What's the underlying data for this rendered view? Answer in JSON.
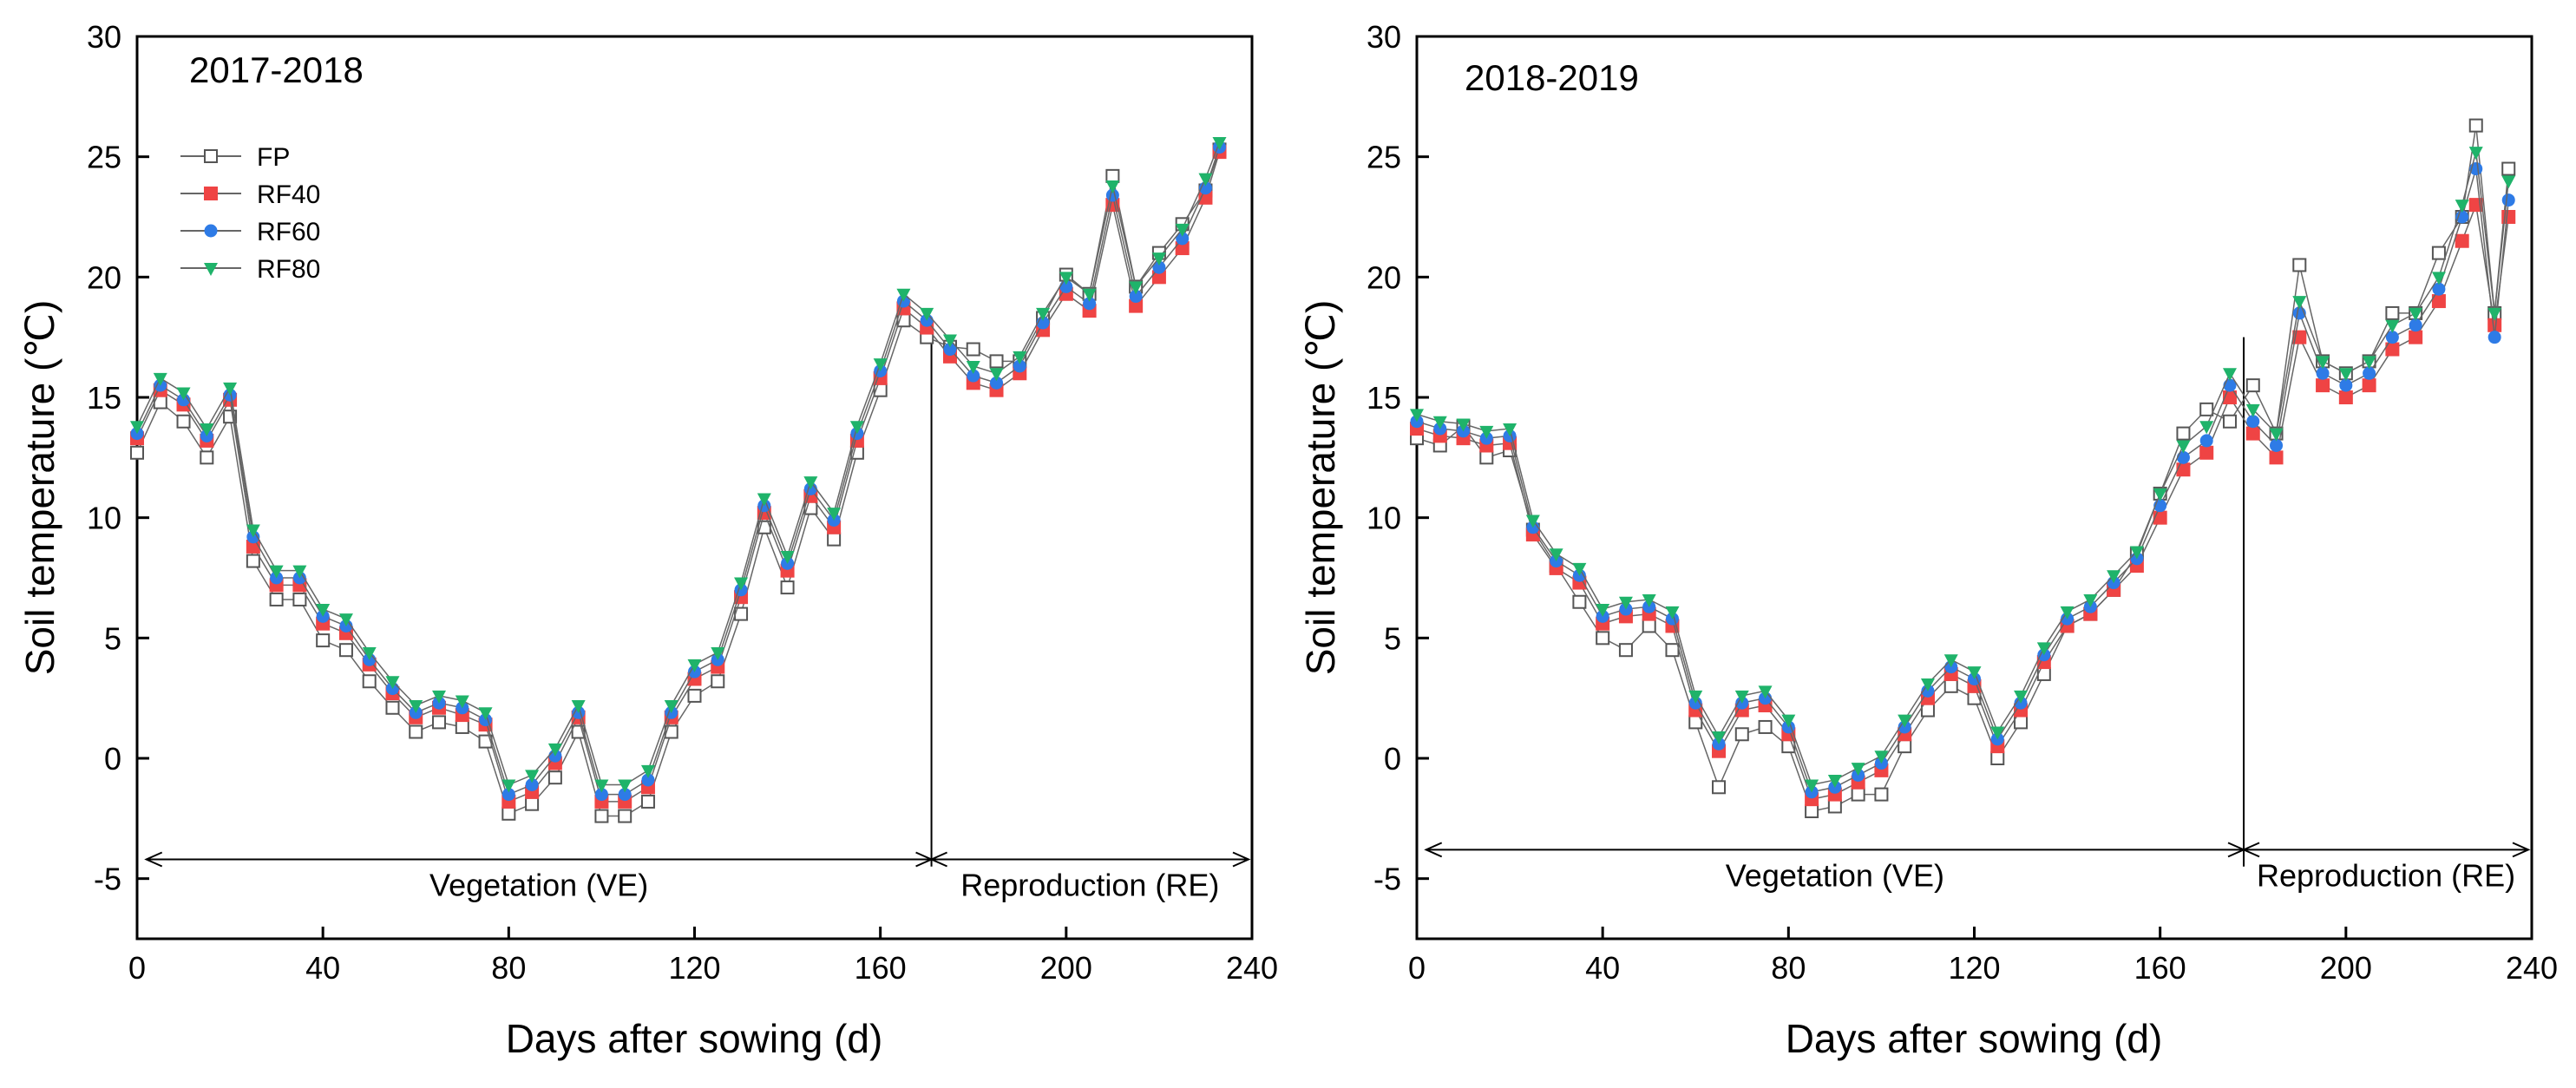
{
  "chart_data": [
    {
      "type": "line",
      "title": "2017-2018",
      "xlabel": "Days after sowing (d)",
      "ylabel": "Soil temperature (℃)",
      "xlim": [
        0,
        240
      ],
      "ylim": [
        -7.5,
        30
      ],
      "xticks": [
        "0",
        "40",
        "80",
        "120",
        "160",
        "200",
        "240"
      ],
      "yticks": [
        "-5",
        "0",
        "5",
        "10",
        "15",
        "20",
        "25",
        "30"
      ],
      "legend": [
        "FP",
        "RF40",
        "RF60",
        "RF80"
      ],
      "stage_boundary_day": 171,
      "stages": [
        {
          "label": "Vegetation (VE)",
          "from": 2,
          "to": 171,
          "y": -4.2
        },
        {
          "label": "Reproduction (RE)",
          "from": 171,
          "to": 240,
          "y": -4.2
        }
      ],
      "series": [
        {
          "name": "FP",
          "x": [
            0,
            5,
            10,
            15,
            20,
            25,
            30,
            35,
            40,
            45,
            50,
            55,
            60,
            65,
            70,
            75,
            80,
            85,
            90,
            95,
            100,
            105,
            110,
            115,
            120,
            125,
            130,
            135,
            140,
            145,
            150,
            155,
            160,
            165,
            170,
            175,
            180,
            185,
            190,
            195,
            200,
            205,
            210,
            215,
            220,
            225,
            230,
            233
          ],
          "y": [
            12.7,
            14.8,
            14.0,
            12.5,
            14.2,
            8.2,
            6.6,
            6.6,
            4.9,
            4.5,
            3.2,
            2.1,
            1.1,
            1.5,
            1.3,
            0.7,
            -2.3,
            -1.9,
            -0.8,
            1.1,
            -2.4,
            -2.4,
            -1.8,
            1.1,
            2.6,
            3.2,
            6.0,
            9.6,
            7.1,
            10.4,
            9.1,
            12.7,
            15.3,
            18.2,
            17.5,
            17.1,
            17.0,
            16.5,
            16.5,
            18.3,
            20.1,
            19.3,
            24.2,
            19.6,
            21.0,
            22.2,
            23.6,
            25.3
          ]
        },
        {
          "name": "RF40",
          "x": [
            0,
            5,
            10,
            15,
            20,
            25,
            30,
            35,
            40,
            45,
            50,
            55,
            60,
            65,
            70,
            75,
            80,
            85,
            90,
            95,
            100,
            105,
            110,
            115,
            120,
            125,
            130,
            135,
            140,
            145,
            150,
            155,
            160,
            165,
            170,
            175,
            180,
            185,
            190,
            195,
            200,
            205,
            210,
            215,
            220,
            225,
            230,
            233
          ],
          "y": [
            13.3,
            15.3,
            14.7,
            13.2,
            14.9,
            8.8,
            7.2,
            7.2,
            5.6,
            5.2,
            3.9,
            2.7,
            1.7,
            2.1,
            1.8,
            1.4,
            -1.8,
            -1.4,
            -0.2,
            1.7,
            -1.8,
            -1.8,
            -1.2,
            1.7,
            3.3,
            3.8,
            6.7,
            10.2,
            7.8,
            10.9,
            9.6,
            13.2,
            15.8,
            18.7,
            17.9,
            16.7,
            15.6,
            15.3,
            16.0,
            17.8,
            19.3,
            18.6,
            23.0,
            18.8,
            20.0,
            21.2,
            23.3,
            25.2
          ]
        },
        {
          "name": "RF60",
          "x": [
            0,
            5,
            10,
            15,
            20,
            25,
            30,
            35,
            40,
            45,
            50,
            55,
            60,
            65,
            70,
            75,
            80,
            85,
            90,
            95,
            100,
            105,
            110,
            115,
            120,
            125,
            130,
            135,
            140,
            145,
            150,
            155,
            160,
            165,
            170,
            175,
            180,
            185,
            190,
            195,
            200,
            205,
            210,
            215,
            220,
            225,
            230,
            233
          ],
          "y": [
            13.5,
            15.5,
            14.9,
            13.4,
            15.1,
            9.2,
            7.5,
            7.5,
            5.9,
            5.5,
            4.1,
            2.9,
            1.9,
            2.3,
            2.1,
            1.6,
            -1.5,
            -1.1,
            0.1,
            1.9,
            -1.5,
            -1.5,
            -0.9,
            1.9,
            3.6,
            4.1,
            7.0,
            10.5,
            8.1,
            11.2,
            9.9,
            13.5,
            16.1,
            19.0,
            18.2,
            17.0,
            15.9,
            15.6,
            16.3,
            18.1,
            19.6,
            18.9,
            23.4,
            19.2,
            20.4,
            21.6,
            23.7,
            25.4
          ]
        },
        {
          "name": "RF80",
          "x": [
            0,
            5,
            10,
            15,
            20,
            25,
            30,
            35,
            40,
            45,
            50,
            55,
            60,
            65,
            70,
            75,
            80,
            85,
            90,
            95,
            100,
            105,
            110,
            115,
            120,
            125,
            130,
            135,
            140,
            145,
            150,
            155,
            160,
            165,
            170,
            175,
            180,
            185,
            190,
            195,
            200,
            205,
            210,
            215,
            220,
            225,
            230,
            233
          ],
          "y": [
            13.8,
            15.8,
            15.2,
            13.7,
            15.4,
            9.5,
            7.8,
            7.8,
            6.2,
            5.8,
            4.4,
            3.2,
            2.2,
            2.6,
            2.4,
            1.9,
            -1.1,
            -0.7,
            0.4,
            2.2,
            -1.1,
            -1.1,
            -0.5,
            2.2,
            3.9,
            4.4,
            7.3,
            10.8,
            8.4,
            11.5,
            10.2,
            13.8,
            16.4,
            19.3,
            18.5,
            17.4,
            16.3,
            16.0,
            16.7,
            18.5,
            20.0,
            19.3,
            23.8,
            19.6,
            20.8,
            22.0,
            24.1,
            25.6
          ]
        }
      ]
    },
    {
      "type": "line",
      "title": "2018-2019",
      "xlabel": "Days after sowing (d)",
      "ylabel": "Soil temperature (℃)",
      "xlim": [
        0,
        240
      ],
      "ylim": [
        -7.5,
        30
      ],
      "xticks": [
        "0",
        "40",
        "80",
        "120",
        "160",
        "200",
        "240"
      ],
      "yticks": [
        "-5",
        "0",
        "5",
        "10",
        "15",
        "20",
        "25",
        "30"
      ],
      "legend": [
        "FP",
        "RF40",
        "RF60",
        "RF80"
      ],
      "stage_boundary_day": 178,
      "stages": [
        {
          "label": "Vegetation (VE)",
          "from": 2,
          "to": 178,
          "y": -3.8
        },
        {
          "label": "Reproduction (RE)",
          "from": 178,
          "to": 242,
          "y": -3.8
        }
      ],
      "series": [
        {
          "name": "FP",
          "x": [
            0,
            5,
            10,
            15,
            20,
            25,
            30,
            35,
            40,
            45,
            50,
            55,
            60,
            65,
            70,
            75,
            80,
            85,
            90,
            95,
            100,
            105,
            110,
            115,
            120,
            125,
            130,
            135,
            140,
            145,
            150,
            155,
            160,
            165,
            170,
            175,
            180,
            185,
            190,
            195,
            200,
            205,
            210,
            215,
            220,
            225,
            228,
            232,
            235
          ],
          "y": [
            13.3,
            13.0,
            13.8,
            12.5,
            12.8,
            9.5,
            8.0,
            6.5,
            5.0,
            4.5,
            5.5,
            4.5,
            1.5,
            -1.2,
            1.0,
            1.3,
            0.5,
            -2.2,
            -2.0,
            -1.5,
            -1.5,
            0.5,
            2.0,
            3.0,
            2.5,
            0.0,
            1.5,
            3.5,
            5.5,
            6.0,
            7.0,
            8.5,
            11.0,
            13.5,
            14.5,
            14.0,
            15.5,
            13.5,
            20.5,
            16.5,
            16.0,
            16.5,
            18.5,
            18.5,
            21.0,
            22.5,
            26.3,
            18.5,
            24.5
          ]
        },
        {
          "name": "RF40",
          "x": [
            0,
            5,
            10,
            15,
            20,
            25,
            30,
            35,
            40,
            45,
            50,
            55,
            60,
            65,
            70,
            75,
            80,
            85,
            90,
            95,
            100,
            105,
            110,
            115,
            120,
            125,
            130,
            135,
            140,
            145,
            150,
            155,
            160,
            165,
            170,
            175,
            180,
            185,
            190,
            195,
            200,
            205,
            210,
            215,
            220,
            225,
            228,
            232,
            235
          ],
          "y": [
            13.7,
            13.4,
            13.3,
            13.0,
            13.1,
            9.3,
            7.9,
            7.3,
            5.6,
            5.9,
            6.0,
            5.5,
            2.0,
            0.3,
            2.0,
            2.2,
            1.0,
            -1.7,
            -1.5,
            -1.0,
            -0.5,
            1.0,
            2.5,
            3.5,
            3.0,
            0.5,
            2.0,
            4.0,
            5.5,
            6.0,
            7.0,
            8.0,
            10.0,
            12.0,
            12.7,
            15.0,
            13.5,
            12.5,
            17.5,
            15.5,
            15.0,
            15.5,
            17.0,
            17.5,
            19.0,
            21.5,
            23.0,
            18.0,
            22.5
          ]
        },
        {
          "name": "RF60",
          "x": [
            0,
            5,
            10,
            15,
            20,
            25,
            30,
            35,
            40,
            45,
            50,
            55,
            60,
            65,
            70,
            75,
            80,
            85,
            90,
            95,
            100,
            105,
            110,
            115,
            120,
            125,
            130,
            135,
            140,
            145,
            150,
            155,
            160,
            165,
            170,
            175,
            180,
            185,
            190,
            195,
            200,
            205,
            210,
            215,
            220,
            225,
            228,
            232,
            235
          ],
          "y": [
            14.0,
            13.7,
            13.6,
            13.3,
            13.4,
            9.6,
            8.2,
            7.6,
            5.9,
            6.2,
            6.3,
            5.8,
            2.3,
            0.6,
            2.3,
            2.5,
            1.3,
            -1.4,
            -1.2,
            -0.7,
            -0.2,
            1.3,
            2.8,
            3.8,
            3.3,
            0.8,
            2.3,
            4.3,
            5.8,
            6.3,
            7.3,
            8.3,
            10.5,
            12.5,
            13.2,
            15.5,
            14.0,
            13.0,
            18.5,
            16.0,
            15.5,
            16.0,
            17.5,
            18.0,
            19.5,
            22.5,
            24.5,
            17.5,
            23.2
          ]
        },
        {
          "name": "RF80",
          "x": [
            0,
            5,
            10,
            15,
            20,
            25,
            30,
            35,
            40,
            45,
            50,
            55,
            60,
            65,
            70,
            75,
            80,
            85,
            90,
            95,
            100,
            105,
            110,
            115,
            120,
            125,
            130,
            135,
            140,
            145,
            150,
            155,
            160,
            165,
            170,
            175,
            180,
            185,
            190,
            195,
            200,
            205,
            210,
            215,
            220,
            225,
            228,
            232,
            235
          ],
          "y": [
            14.3,
            14.0,
            13.9,
            13.6,
            13.7,
            9.9,
            8.5,
            7.9,
            6.2,
            6.5,
            6.6,
            6.1,
            2.6,
            0.9,
            2.6,
            2.8,
            1.6,
            -1.1,
            -0.9,
            -0.4,
            0.1,
            1.6,
            3.1,
            4.1,
            3.6,
            1.1,
            2.6,
            4.6,
            6.1,
            6.6,
            7.6,
            8.6,
            11.0,
            13.0,
            13.8,
            16.0,
            14.5,
            13.5,
            19.0,
            16.5,
            16.0,
            16.5,
            18.0,
            18.5,
            20.0,
            23.0,
            25.2,
            18.5,
            24.0
          ]
        }
      ]
    }
  ],
  "colors": {
    "FP": "#ffffff",
    "RF40": "#ef4444",
    "RF60": "#2e7be6",
    "RF80": "#1fb36a",
    "line": "#666666",
    "axis": "#000000"
  },
  "marker_shapes": {
    "FP": "open-square",
    "RF40": "filled-square",
    "RF60": "filled-circle",
    "RF80": "filled-triangle-down"
  }
}
